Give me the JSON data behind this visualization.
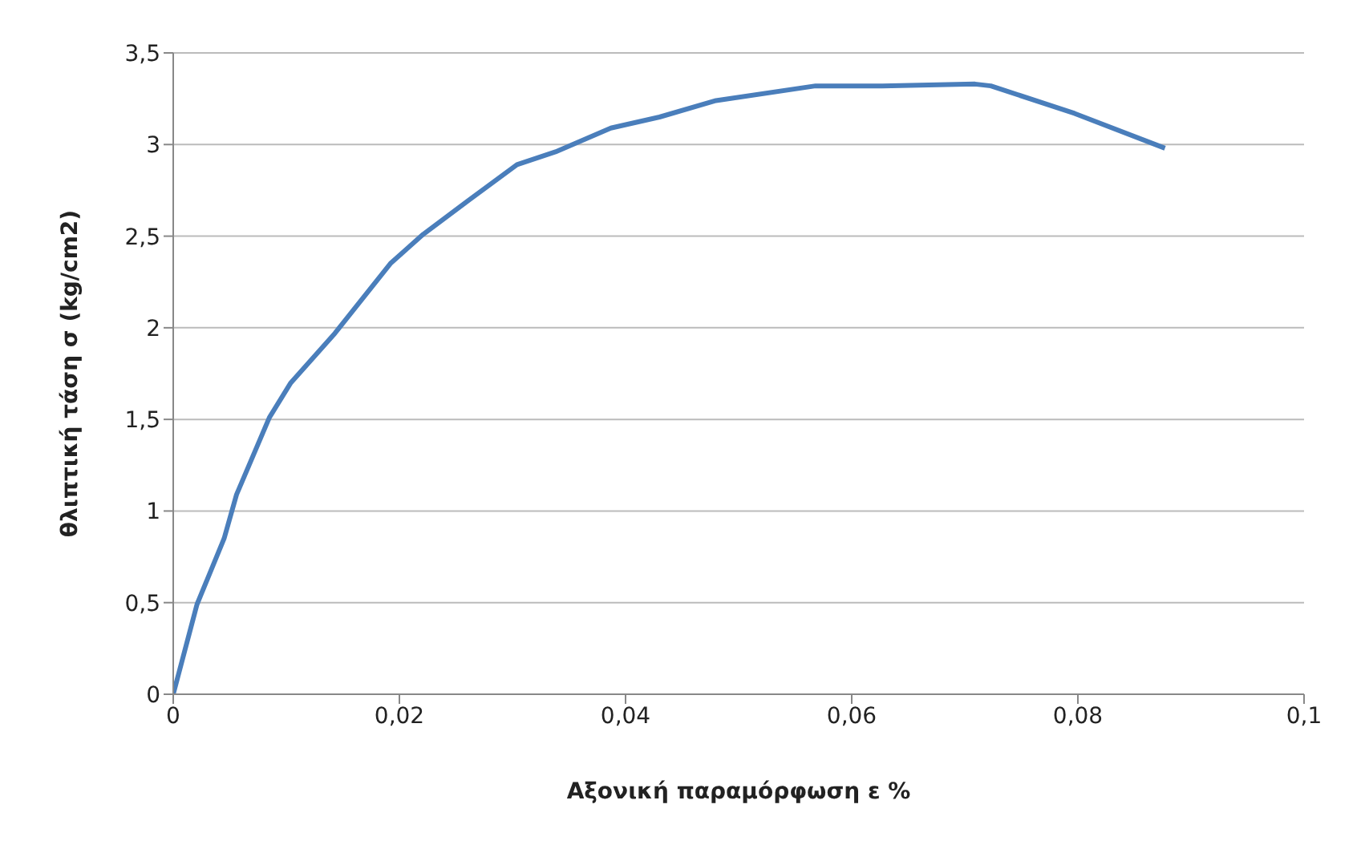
{
  "chart_data": {
    "type": "line",
    "xlabel": "Αξονική παραμόρφωση ε %",
    "ylabel": "θλιπτική τάση σ (kg/cm2)",
    "series": [
      {
        "color": "#4a7ebb",
        "x": [
          0,
          0.0021,
          0.0045,
          0.0056,
          0.0085,
          0.0104,
          0.0143,
          0.0192,
          0.0221,
          0.026,
          0.0304,
          0.0338,
          0.0387,
          0.043,
          0.048,
          0.0568,
          0.0627,
          0.0709,
          0.0723,
          0.0797,
          0.0877
        ],
        "values": [
          0,
          0.49,
          0.85,
          1.09,
          1.51,
          1.7,
          1.97,
          2.35,
          2.51,
          2.69,
          2.89,
          2.96,
          3.09,
          3.15,
          3.24,
          3.32,
          3.32,
          3.33,
          3.32,
          3.17,
          2.98
        ]
      }
    ],
    "xlim": [
      0,
      0.1
    ],
    "xticks": [
      {
        "value": 0,
        "label": "0"
      },
      {
        "value": 0.02,
        "label": "0,02"
      },
      {
        "value": 0.04,
        "label": "0,04"
      },
      {
        "value": 0.06,
        "label": "0,06"
      },
      {
        "value": 0.08,
        "label": "0,08"
      },
      {
        "value": 0.1,
        "label": "0,1"
      }
    ],
    "ylim": [
      0,
      3.5
    ],
    "yticks": [
      {
        "value": 0,
        "label": "0"
      },
      {
        "value": 0.5,
        "label": "0,5"
      },
      {
        "value": 1,
        "label": "1"
      },
      {
        "value": 1.5,
        "label": "1,5"
      },
      {
        "value": 2,
        "label": "2"
      },
      {
        "value": 2.5,
        "label": "2,5"
      },
      {
        "value": 3,
        "label": "3"
      },
      {
        "value": 3.5,
        "label": "3,5"
      }
    ],
    "grid": "y",
    "legend": false,
    "marker": "none",
    "line_style": "solid"
  }
}
